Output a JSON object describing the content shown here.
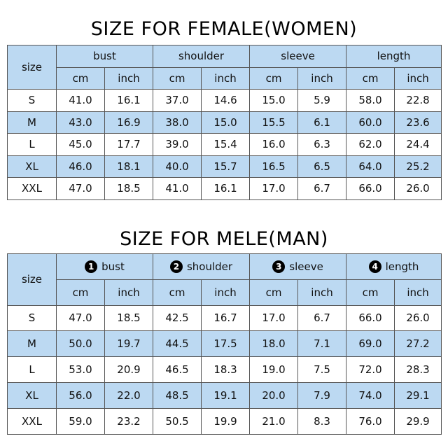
{
  "women": {
    "title": "SIZE FOR FEMALE(WOMEN)",
    "size_label": "size",
    "groups": [
      {
        "label": "bust",
        "badge": ""
      },
      {
        "label": "shoulder",
        "badge": ""
      },
      {
        "label": "sleeve",
        "badge": ""
      },
      {
        "label": "length",
        "badge": ""
      }
    ],
    "units": [
      "cm",
      "inch",
      "cm",
      "inch",
      "cm",
      "inch",
      "cm",
      "inch"
    ],
    "rows": [
      {
        "size": "S",
        "values": [
          "41.0",
          "16.1",
          "37.0",
          "14.6",
          "15.0",
          "5.9",
          "58.0",
          "22.8"
        ]
      },
      {
        "size": "M",
        "values": [
          "43.0",
          "16.9",
          "38.0",
          "15.0",
          "15.5",
          "6.1",
          "60.0",
          "23.6"
        ]
      },
      {
        "size": "L",
        "values": [
          "45.0",
          "17.7",
          "39.0",
          "15.4",
          "16.0",
          "6.3",
          "62.0",
          "24.4"
        ]
      },
      {
        "size": "XL",
        "values": [
          "46.0",
          "18.1",
          "40.0",
          "15.7",
          "16.5",
          "6.5",
          "64.0",
          "25.2"
        ]
      },
      {
        "size": "XXL",
        "values": [
          "47.0",
          "18.5",
          "41.0",
          "16.1",
          "17.0",
          "6.7",
          "66.0",
          "26.0"
        ]
      }
    ]
  },
  "men": {
    "title": "SIZE FOR MELE(MAN)",
    "size_label": "size",
    "groups": [
      {
        "label": "bust",
        "badge": "1"
      },
      {
        "label": "shoulder",
        "badge": "2"
      },
      {
        "label": "sleeve",
        "badge": "3"
      },
      {
        "label": "length",
        "badge": "4"
      }
    ],
    "units": [
      "cm",
      "inch",
      "cm",
      "inch",
      "cm",
      "inch",
      "cm",
      "inch"
    ],
    "rows": [
      {
        "size": "S",
        "values": [
          "47.0",
          "18.5",
          "42.5",
          "16.7",
          "17.0",
          "6.7",
          "66.0",
          "26.0"
        ]
      },
      {
        "size": "M",
        "values": [
          "50.0",
          "19.7",
          "44.5",
          "17.5",
          "18.0",
          "7.1",
          "69.0",
          "27.2"
        ]
      },
      {
        "size": "L",
        "values": [
          "53.0",
          "20.9",
          "46.5",
          "18.3",
          "19.0",
          "7.5",
          "72.0",
          "28.3"
        ]
      },
      {
        "size": "XL",
        "values": [
          "56.0",
          "22.0",
          "48.5",
          "19.1",
          "20.0",
          "7.9",
          "74.0",
          "29.1"
        ]
      },
      {
        "size": "XXL",
        "values": [
          "59.0",
          "23.2",
          "50.5",
          "19.9",
          "21.0",
          "8.3",
          "76.0",
          "29.9"
        ]
      }
    ]
  }
}
